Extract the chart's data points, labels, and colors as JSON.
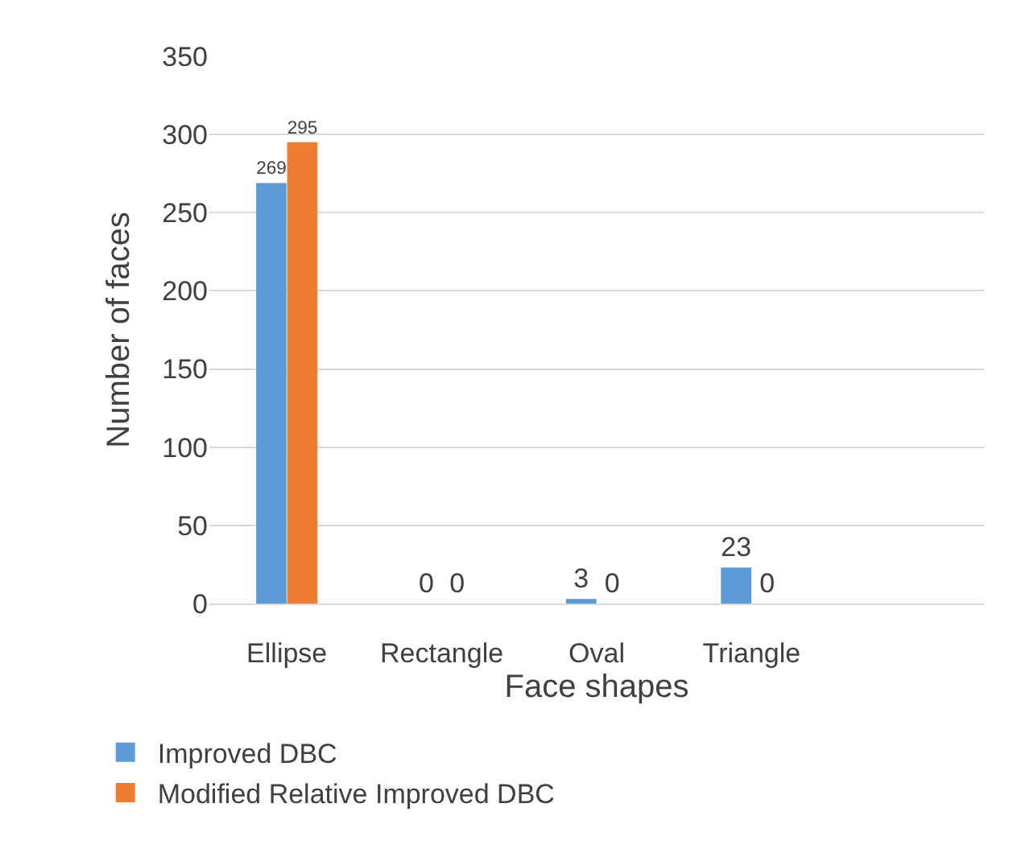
{
  "chart_data": {
    "type": "bar",
    "xlabel": "Face shapes",
    "ylabel": "Number of faces",
    "categories": [
      "Ellipse",
      "Rectangle",
      "Oval",
      "Triangle",
      null
    ],
    "series": [
      {
        "name": "Improved DBC",
        "color": "#5b9bd5",
        "values": [
          269,
          0,
          3,
          23,
          null
        ]
      },
      {
        "name": "Modified Relative Improved DBC",
        "color": "#ed7d31",
        "values": [
          295,
          0,
          0,
          0,
          null
        ]
      }
    ],
    "ylim": [
      0,
      350
    ],
    "yticks": [
      0,
      50,
      100,
      150,
      200,
      250,
      300,
      350
    ],
    "grid": "y",
    "legend": "bottom",
    "data_labels": true
  }
}
